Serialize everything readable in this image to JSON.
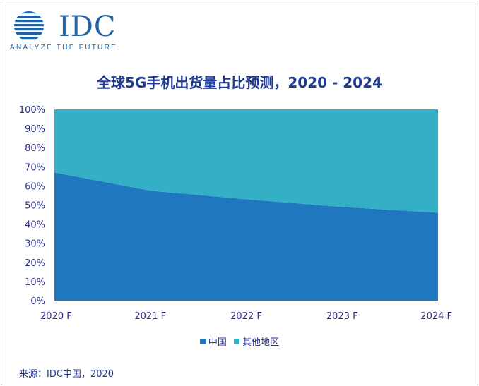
{
  "logo": {
    "wordmark": "IDC",
    "tagline": "ANALYZE THE FUTURE",
    "color": "#1f62a8"
  },
  "chart_data": {
    "type": "area",
    "stacked": true,
    "title": "全球5G手机出货量占比预测，2020 - 2024",
    "categories": [
      "2020 F",
      "2021 F",
      "2022 F",
      "2023 F",
      "2024 F"
    ],
    "series": [
      {
        "name": "中国",
        "values": [
          67,
          57.5,
          53,
          49,
          46
        ],
        "color": "#1f77c0"
      },
      {
        "name": "其他地区",
        "values": [
          33,
          42.5,
          47,
          51,
          54
        ],
        "color": "#33afc6"
      }
    ],
    "ylim": [
      0,
      100
    ],
    "yticks": [
      "0%",
      "10%",
      "20%",
      "30%",
      "40%",
      "50%",
      "60%",
      "70%",
      "80%",
      "90%",
      "100%"
    ],
    "xlabel": "",
    "ylabel": "",
    "grid": false,
    "legend_position": "bottom",
    "source": "来源：IDC中国，2020"
  }
}
